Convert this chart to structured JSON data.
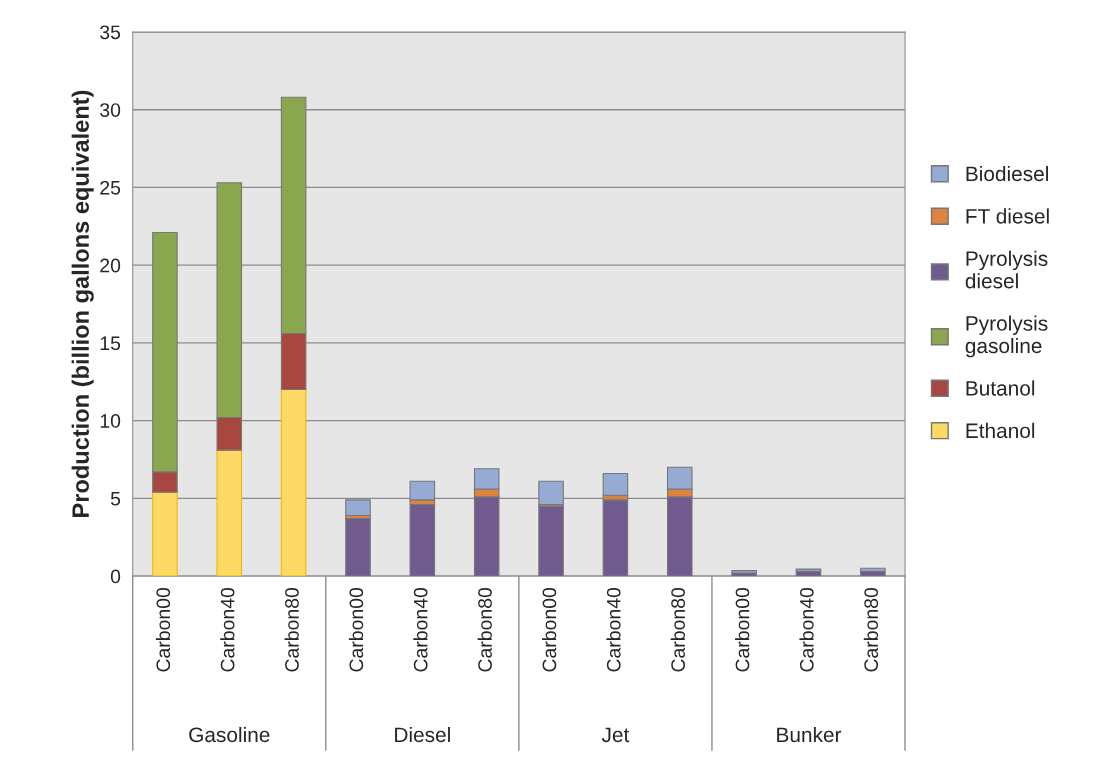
{
  "chart_data": {
    "type": "bar",
    "stacked": true,
    "ylabel": "Production (billion gallons equivalent)",
    "categories": [
      "Carbon00",
      "Carbon40",
      "Carbon80",
      "Carbon00",
      "Carbon40",
      "Carbon80",
      "Carbon00",
      "Carbon40",
      "Carbon80",
      "Carbon00",
      "Carbon40",
      "Carbon80"
    ],
    "annotations": [
      "Gasoline",
      "Diesel",
      "Jet",
      "Bunker"
    ],
    "series": [
      {
        "name": "Ethanol",
        "color": "#ffd966",
        "values": [
          5.4,
          8.1,
          12.0,
          0,
          0,
          0,
          0,
          0,
          0,
          0,
          0,
          0
        ]
      },
      {
        "name": "Butanol",
        "color": "#a84642",
        "values": [
          1.3,
          2.1,
          3.6,
          0,
          0,
          0,
          0,
          0,
          0,
          0,
          0,
          0
        ]
      },
      {
        "name": "Pyrolysis gasoline",
        "color": "#8aa64f",
        "values": [
          15.4,
          15.1,
          15.2,
          0,
          0,
          0,
          0,
          0,
          0,
          0,
          0,
          0
        ]
      },
      {
        "name": "Pyrolysis diesel",
        "color": "#705a8e",
        "values": [
          0,
          0,
          0,
          3.7,
          4.6,
          5.1,
          4.5,
          4.9,
          5.1,
          0.2,
          0.3,
          0.3
        ]
      },
      {
        "name": "FT diesel",
        "color": "#dd8340",
        "values": [
          0,
          0,
          0,
          0.2,
          0.3,
          0.5,
          0.1,
          0.3,
          0.5,
          0,
          0,
          null
        ]
      },
      {
        "name": "Biodiesel",
        "color": "#95abd3",
        "values": [
          0,
          0,
          0,
          1.0,
          1.2,
          1.3,
          1.5,
          1.4,
          1.4,
          0.15,
          0.15,
          0.2
        ]
      }
    ],
    "ylim": [
      0,
      35
    ],
    "yticks": [
      0,
      5,
      10,
      15,
      20,
      25,
      30,
      35
    ],
    "grid": "y",
    "legend": "right"
  }
}
